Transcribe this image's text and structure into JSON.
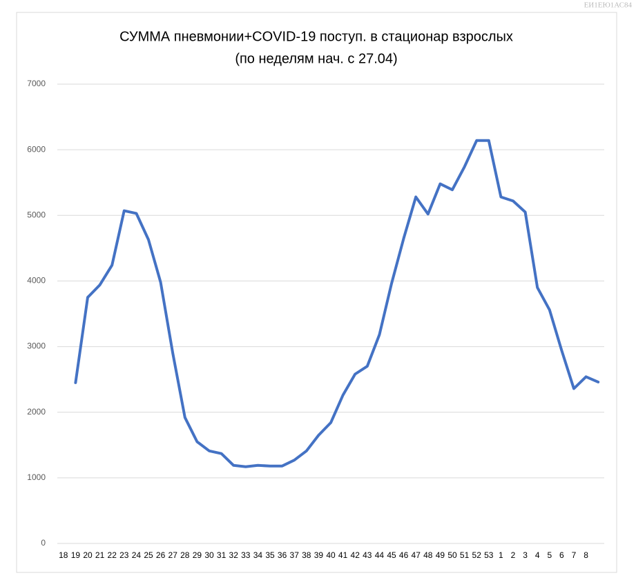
{
  "watermark": "ЕИ1ЕЮ1АС84",
  "chart_data": {
    "type": "line",
    "title": [
      "СУММА  пневмонии+COVID-19 поступ. в стационар взрослых",
      "(по неделям нач. с 27.04)"
    ],
    "categories": [
      "18",
      "19",
      "20",
      "21",
      "22",
      "23",
      "24",
      "25",
      "26",
      "27",
      "28",
      "29",
      "30",
      "31",
      "32",
      "33",
      "34",
      "35",
      "36",
      "37",
      "38",
      "39",
      "40",
      "41",
      "42",
      "43",
      "44",
      "45",
      "46",
      "47",
      "48",
      "49",
      "50",
      "51",
      "52",
      "53",
      "1",
      "2",
      "3",
      "4",
      "5",
      "6",
      "7",
      "8",
      null
    ],
    "series": [
      {
        "name": "СУММА",
        "color": "#4472c4",
        "values": [
          null,
          2450,
          3750,
          3940,
          4240,
          5070,
          5030,
          4630,
          3980,
          2900,
          1920,
          1550,
          1410,
          1370,
          1190,
          1170,
          1190,
          1180,
          1180,
          1270,
          1410,
          1650,
          1840,
          2260,
          2580,
          2700,
          3180,
          3960,
          4650,
          5280,
          5020,
          5480,
          5390,
          5740,
          6140,
          6140,
          5280,
          5220,
          5050,
          3900,
          3560,
          2940,
          2360,
          2540,
          2460
        ]
      }
    ],
    "ylim": [
      0,
      7000
    ],
    "yticks": [
      0,
      1000,
      2000,
      3000,
      4000,
      5000,
      6000,
      7000
    ],
    "grid": true
  }
}
